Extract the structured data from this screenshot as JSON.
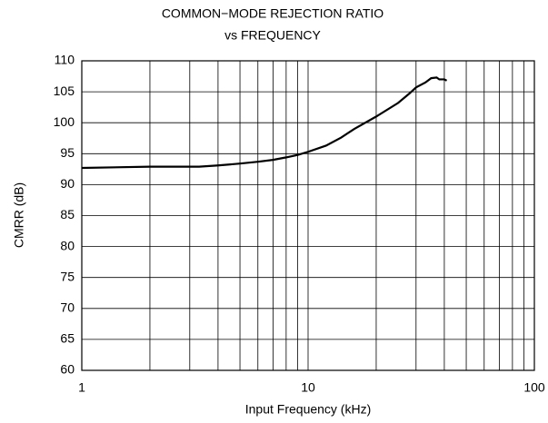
{
  "chart_data": {
    "type": "line",
    "title": "COMMON−MODE REJECTION RATIO",
    "subtitle": "vs FREQUENCY",
    "x_label": "Input Frequency (kHz)",
    "y_label": "CMRR (dB)",
    "x_scale": "log",
    "xlim": [
      1,
      100
    ],
    "xticks": [
      1,
      10,
      100
    ],
    "x_minor_grid": [
      2,
      3,
      4,
      5,
      6,
      7,
      8,
      9,
      20,
      30,
      40,
      50,
      60,
      70,
      80,
      90
    ],
    "ylim": [
      60,
      110
    ],
    "yticks": [
      60,
      65,
      70,
      75,
      80,
      85,
      90,
      95,
      100,
      105,
      110
    ],
    "grid": true,
    "series": [
      {
        "name": "CMRR",
        "color": "#000000",
        "x": [
          1,
          2,
          3.3,
          4,
          5,
          6,
          7,
          8,
          9,
          10,
          12,
          14,
          16,
          20,
          25,
          28,
          30,
          33,
          35,
          37,
          38,
          40,
          41
        ],
        "values": [
          92.7,
          92.9,
          92.9,
          93.1,
          93.4,
          93.7,
          94.0,
          94.4,
          94.8,
          95.3,
          96.3,
          97.6,
          99.0,
          101.0,
          103.2,
          104.7,
          105.7,
          106.5,
          107.2,
          107.3,
          107.0,
          107.0,
          106.8
        ]
      }
    ]
  }
}
